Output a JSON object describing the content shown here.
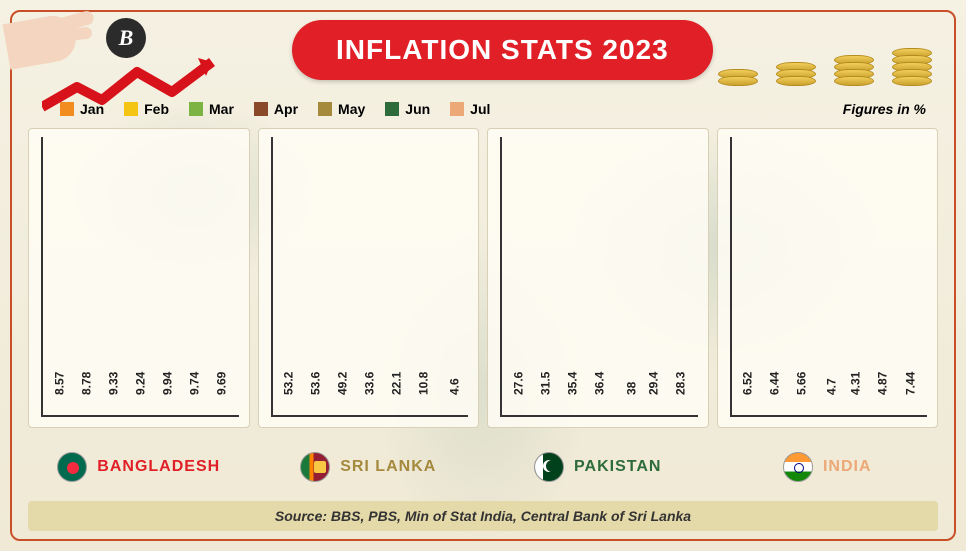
{
  "title": "INFLATION STATS 2023",
  "logo_letter": "B",
  "figures_note": "Figures in %",
  "source": "Source: BBS, PBS, Min of Stat India, Central Bank of Sri Lanka",
  "months": [
    "Jan",
    "Feb",
    "Mar",
    "Apr",
    "May",
    "Jun",
    "Jul"
  ],
  "month_colors": [
    "#f28c1e",
    "#f4c613",
    "#7cb342",
    "#8a4a2a",
    "#a58a3d",
    "#2e6b3a",
    "#eca977"
  ],
  "chart": {
    "type": "bar",
    "ymax": 60,
    "axis_color": "#333333",
    "panel_bg": "rgba(255,253,244,.85)",
    "panel_border": "#d8d0b6",
    "value_label_fontsize": 12,
    "value_label_rotation_deg": -90
  },
  "title_pill": {
    "bg": "#e01f26",
    "color": "#ffffff",
    "fontsize": 28
  },
  "arrow_color": "#d8121a",
  "frame_border_color": "#c94f28",
  "background_color": "#f5f1e3",
  "coin_stacks": [
    2,
    3,
    4,
    5
  ],
  "countries": [
    {
      "code": "bd",
      "name": "BANGLADESH",
      "name_color": "#e01f26",
      "values": [
        8.57,
        8.78,
        9.33,
        9.24,
        9.94,
        9.74,
        9.69
      ]
    },
    {
      "code": "lk",
      "name": "SRI LANKA",
      "name_color": "#a58a3d",
      "values": [
        53.2,
        53.6,
        49.2,
        33.6,
        22.1,
        10.8,
        4.6
      ]
    },
    {
      "code": "pk",
      "name": "PAKISTAN",
      "name_color": "#2e6b3a",
      "values": [
        27.6,
        31.5,
        35.4,
        36.4,
        38,
        29.4,
        28.3
      ]
    },
    {
      "code": "in",
      "name": "INDIA",
      "name_color": "#eca977",
      "values": [
        6.52,
        6.44,
        5.66,
        4.7,
        4.31,
        4.87,
        7.44
      ]
    }
  ]
}
